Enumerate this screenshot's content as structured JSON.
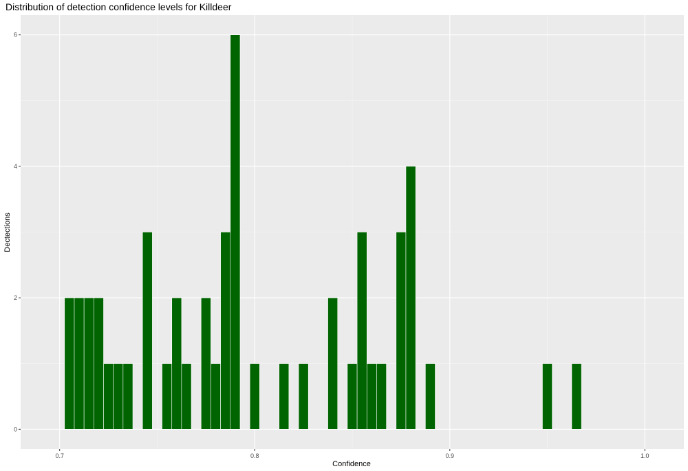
{
  "chart_data": {
    "type": "bar",
    "title": "Distribution of detection confidence levels for Killdeer",
    "xlabel": "Confidence",
    "ylabel": "Dectections",
    "xlim": [
      0.68,
      1.02
    ],
    "ylim": [
      -0.3,
      6.3
    ],
    "x_ticks": [
      0.7,
      0.8,
      0.9,
      1.0
    ],
    "x_tick_labels": [
      "0.7",
      "0.8",
      "0.9",
      "1.0"
    ],
    "y_ticks": [
      0,
      2,
      4,
      6
    ],
    "y_tick_labels": [
      "0",
      "2",
      "4",
      "6"
    ],
    "bin_width": 0.005,
    "bins": [
      {
        "x": 0.705,
        "count": 2
      },
      {
        "x": 0.71,
        "count": 2
      },
      {
        "x": 0.715,
        "count": 2
      },
      {
        "x": 0.72,
        "count": 2
      },
      {
        "x": 0.725,
        "count": 1
      },
      {
        "x": 0.73,
        "count": 1
      },
      {
        "x": 0.735,
        "count": 1
      },
      {
        "x": 0.745,
        "count": 3
      },
      {
        "x": 0.755,
        "count": 1
      },
      {
        "x": 0.76,
        "count": 2
      },
      {
        "x": 0.765,
        "count": 1
      },
      {
        "x": 0.775,
        "count": 2
      },
      {
        "x": 0.78,
        "count": 1
      },
      {
        "x": 0.785,
        "count": 3
      },
      {
        "x": 0.79,
        "count": 6
      },
      {
        "x": 0.8,
        "count": 1
      },
      {
        "x": 0.815,
        "count": 1
      },
      {
        "x": 0.825,
        "count": 1
      },
      {
        "x": 0.84,
        "count": 2
      },
      {
        "x": 0.85,
        "count": 1
      },
      {
        "x": 0.855,
        "count": 3
      },
      {
        "x": 0.86,
        "count": 1
      },
      {
        "x": 0.865,
        "count": 1
      },
      {
        "x": 0.875,
        "count": 3
      },
      {
        "x": 0.88,
        "count": 4
      },
      {
        "x": 0.89,
        "count": 1
      },
      {
        "x": 0.95,
        "count": 1
      },
      {
        "x": 0.965,
        "count": 1
      }
    ],
    "grid": true,
    "colors": {
      "bar_fill": "#006400",
      "bar_outline": "#ffffff",
      "panel_background": "#ebebeb",
      "grid_major": "#ffffff",
      "grid_minor": "#f5f5f5"
    }
  }
}
